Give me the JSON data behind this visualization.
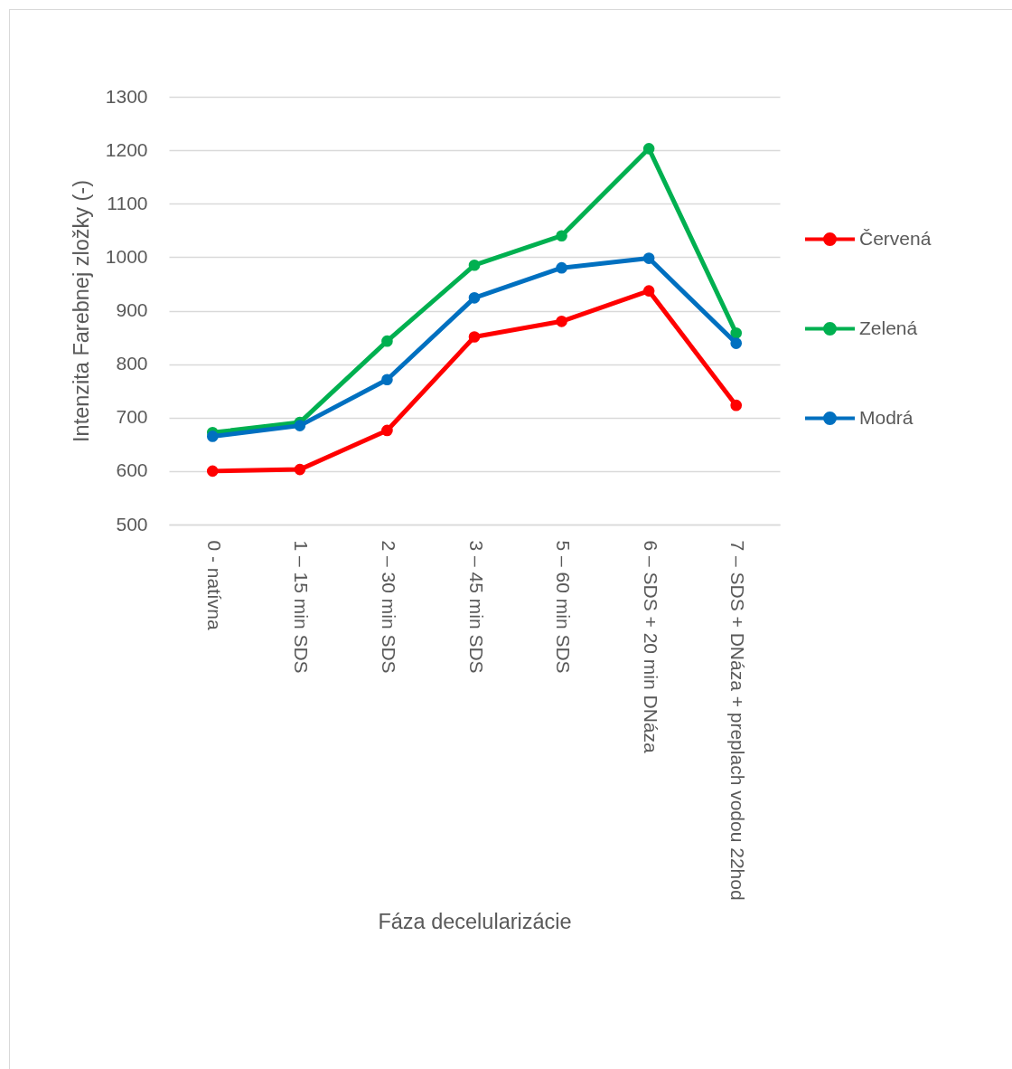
{
  "chart_data": {
    "type": "line",
    "xlabel": "Fáza decelularizácie",
    "ylabel": "Intenzita Farebnej zložky (-)",
    "categories": [
      "0 - natívna",
      "1 – 15 min SDS",
      "2 – 30 min SDS",
      "3 – 45 min SDS",
      "5 – 60 min SDS",
      "6 – SDS + 20 min DNáza",
      "7 – SDS + DNáza + preplach vodou 22hod"
    ],
    "series": [
      {
        "name": "Červená",
        "color": "#ff0000",
        "values": [
          600,
          603,
          676,
          851,
          880,
          937,
          723
        ]
      },
      {
        "name": "Zelená",
        "color": "#00b050",
        "values": [
          672,
          691,
          843,
          985,
          1040,
          1203,
          858
        ]
      },
      {
        "name": "Modrá",
        "color": "#0070c0",
        "values": [
          665,
          685,
          771,
          924,
          980,
          998,
          839
        ]
      }
    ],
    "ylim": [
      500,
      1300
    ],
    "yticks": [
      500,
      600,
      700,
      800,
      900,
      1000,
      1100,
      1200,
      1300
    ],
    "grid": "y",
    "legend": "right",
    "marker": "circle",
    "line_style": "solid"
  }
}
